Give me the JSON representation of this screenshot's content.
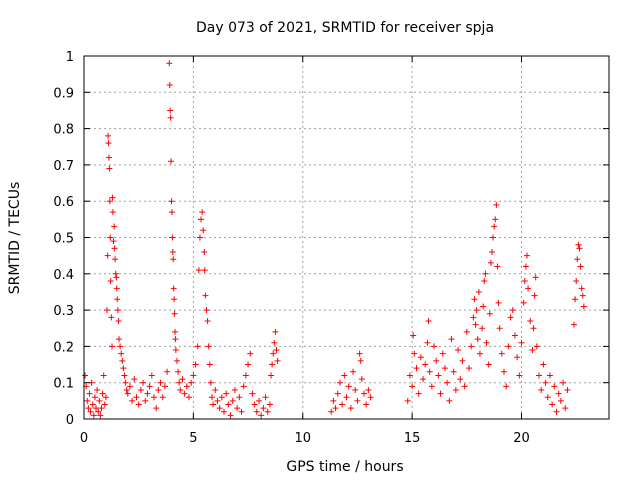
{
  "chart_data": {
    "type": "scatter",
    "title": "Day 073 of 2021, SRMTID for receiver spja",
    "xlabel": "GPS time / hours",
    "ylabel": "SRMTID / TECUs",
    "xlim": [
      0,
      24
    ],
    "ylim": [
      0,
      1
    ],
    "xticks": [
      0,
      5,
      10,
      15,
      20
    ],
    "xtick_labels": [
      "0",
      "5",
      "10",
      "15",
      "20"
    ],
    "yticks": [
      0,
      0.1,
      0.2,
      0.3,
      0.4,
      0.5,
      0.6,
      0.7,
      0.8,
      0.9,
      1
    ],
    "ytick_labels": [
      "0",
      "0.1",
      "0.2",
      "0.3",
      "0.4",
      "0.5",
      "0.6",
      "0.7",
      "0.8",
      "0.9",
      "1"
    ],
    "grid": true,
    "marker": "+",
    "color": "#ff0000",
    "series": [
      {
        "name": "SRMTID",
        "points": [
          [
            0.05,
            0.12
          ],
          [
            0.1,
            0.09
          ],
          [
            0.15,
            0.05
          ],
          [
            0.2,
            0.03
          ],
          [
            0.25,
            0.07
          ],
          [
            0.3,
            0.02
          ],
          [
            0.35,
            0.1
          ],
          [
            0.4,
            0.04
          ],
          [
            0.45,
            0.01
          ],
          [
            0.5,
            0.06
          ],
          [
            0.55,
            0.03
          ],
          [
            0.6,
            0.08
          ],
          [
            0.65,
            0.02
          ],
          [
            0.7,
            0.05
          ],
          [
            0.75,
            0.01
          ],
          [
            0.8,
            0.03
          ],
          [
            0.85,
            0.07
          ],
          [
            0.9,
            0.12
          ],
          [
            0.95,
            0.04
          ],
          [
            1.0,
            0.06
          ],
          [
            1.05,
            0.3
          ],
          [
            1.08,
            0.45
          ],
          [
            1.1,
            0.78
          ],
          [
            1.12,
            0.76
          ],
          [
            1.14,
            0.72
          ],
          [
            1.16,
            0.69
          ],
          [
            1.18,
            0.6
          ],
          [
            1.2,
            0.5
          ],
          [
            1.22,
            0.38
          ],
          [
            1.25,
            0.28
          ],
          [
            1.28,
            0.2
          ],
          [
            1.3,
            0.61
          ],
          [
            1.32,
            0.57
          ],
          [
            1.35,
            0.49
          ],
          [
            1.38,
            0.53
          ],
          [
            1.4,
            0.47
          ],
          [
            1.42,
            0.44
          ],
          [
            1.45,
            0.4
          ],
          [
            1.48,
            0.39
          ],
          [
            1.5,
            0.36
          ],
          [
            1.52,
            0.33
          ],
          [
            1.55,
            0.3
          ],
          [
            1.58,
            0.27
          ],
          [
            1.6,
            0.22
          ],
          [
            1.65,
            0.2
          ],
          [
            1.7,
            0.18
          ],
          [
            1.75,
            0.16
          ],
          [
            1.8,
            0.14
          ],
          [
            1.85,
            0.12
          ],
          [
            1.9,
            0.1
          ],
          [
            1.95,
            0.08
          ],
          [
            2.0,
            0.07
          ],
          [
            2.1,
            0.09
          ],
          [
            2.2,
            0.05
          ],
          [
            2.3,
            0.11
          ],
          [
            2.4,
            0.06
          ],
          [
            2.5,
            0.04
          ],
          [
            2.6,
            0.08
          ],
          [
            2.7,
            0.1
          ],
          [
            2.8,
            0.05
          ],
          [
            2.9,
            0.07
          ],
          [
            3.0,
            0.09
          ],
          [
            3.1,
            0.12
          ],
          [
            3.2,
            0.06
          ],
          [
            3.3,
            0.03
          ],
          [
            3.4,
            0.08
          ],
          [
            3.5,
            0.1
          ],
          [
            3.6,
            0.06
          ],
          [
            3.7,
            0.09
          ],
          [
            3.8,
            0.13
          ],
          [
            3.9,
            0.98
          ],
          [
            3.92,
            0.92
          ],
          [
            3.94,
            0.85
          ],
          [
            3.96,
            0.83
          ],
          [
            3.98,
            0.71
          ],
          [
            4.0,
            0.6
          ],
          [
            4.02,
            0.57
          ],
          [
            4.04,
            0.5
          ],
          [
            4.06,
            0.46
          ],
          [
            4.08,
            0.44
          ],
          [
            4.1,
            0.36
          ],
          [
            4.12,
            0.33
          ],
          [
            4.14,
            0.29
          ],
          [
            4.16,
            0.24
          ],
          [
            4.18,
            0.22
          ],
          [
            4.2,
            0.19
          ],
          [
            4.25,
            0.16
          ],
          [
            4.3,
            0.13
          ],
          [
            4.35,
            0.1
          ],
          [
            4.4,
            0.08
          ],
          [
            4.5,
            0.11
          ],
          [
            4.6,
            0.07
          ],
          [
            4.7,
            0.09
          ],
          [
            4.8,
            0.06
          ],
          [
            4.9,
            0.1
          ],
          [
            5.0,
            0.12
          ],
          [
            5.1,
            0.15
          ],
          [
            5.2,
            0.2
          ],
          [
            5.25,
            0.41
          ],
          [
            5.3,
            0.5
          ],
          [
            5.35,
            0.55
          ],
          [
            5.4,
            0.57
          ],
          [
            5.45,
            0.52
          ],
          [
            5.5,
            0.46
          ],
          [
            5.52,
            0.41
          ],
          [
            5.55,
            0.34
          ],
          [
            5.6,
            0.3
          ],
          [
            5.65,
            0.27
          ],
          [
            5.7,
            0.2
          ],
          [
            5.75,
            0.15
          ],
          [
            5.8,
            0.1
          ],
          [
            5.85,
            0.06
          ],
          [
            5.9,
            0.04
          ],
          [
            6.0,
            0.08
          ],
          [
            6.1,
            0.05
          ],
          [
            6.2,
            0.03
          ],
          [
            6.3,
            0.06
          ],
          [
            6.4,
            0.02
          ],
          [
            6.5,
            0.07
          ],
          [
            6.6,
            0.04
          ],
          [
            6.7,
            0.01
          ],
          [
            6.8,
            0.05
          ],
          [
            6.9,
            0.08
          ],
          [
            7.0,
            0.03
          ],
          [
            7.1,
            0.06
          ],
          [
            7.2,
            0.02
          ],
          [
            7.3,
            0.09
          ],
          [
            7.4,
            0.12
          ],
          [
            7.5,
            0.15
          ],
          [
            7.6,
            0.18
          ],
          [
            7.7,
            0.07
          ],
          [
            7.8,
            0.04
          ],
          [
            7.9,
            0.02
          ],
          [
            8.0,
            0.05
          ],
          [
            8.1,
            0.01
          ],
          [
            8.2,
            0.03
          ],
          [
            8.3,
            0.06
          ],
          [
            8.4,
            0.02
          ],
          [
            8.5,
            0.04
          ],
          [
            8.55,
            0.12
          ],
          [
            8.6,
            0.15
          ],
          [
            8.65,
            0.18
          ],
          [
            8.7,
            0.21
          ],
          [
            8.75,
            0.24
          ],
          [
            8.8,
            0.19
          ],
          [
            8.85,
            0.16
          ],
          [
            11.3,
            0.02
          ],
          [
            11.4,
            0.05
          ],
          [
            11.5,
            0.03
          ],
          [
            11.6,
            0.07
          ],
          [
            11.7,
            0.1
          ],
          [
            11.8,
            0.04
          ],
          [
            11.9,
            0.12
          ],
          [
            12.0,
            0.06
          ],
          [
            12.1,
            0.09
          ],
          [
            12.2,
            0.03
          ],
          [
            12.3,
            0.13
          ],
          [
            12.4,
            0.08
          ],
          [
            12.5,
            0.05
          ],
          [
            12.6,
            0.18
          ],
          [
            12.65,
            0.16
          ],
          [
            12.7,
            0.11
          ],
          [
            12.8,
            0.07
          ],
          [
            12.9,
            0.04
          ],
          [
            13.0,
            0.08
          ],
          [
            13.1,
            0.06
          ],
          [
            14.8,
            0.05
          ],
          [
            14.9,
            0.12
          ],
          [
            15.0,
            0.09
          ],
          [
            15.05,
            0.23
          ],
          [
            15.1,
            0.18
          ],
          [
            15.2,
            0.14
          ],
          [
            15.3,
            0.07
          ],
          [
            15.4,
            0.17
          ],
          [
            15.5,
            0.11
          ],
          [
            15.6,
            0.15
          ],
          [
            15.7,
            0.21
          ],
          [
            15.75,
            0.27
          ],
          [
            15.8,
            0.13
          ],
          [
            15.9,
            0.09
          ],
          [
            16.0,
            0.2
          ],
          [
            16.1,
            0.16
          ],
          [
            16.2,
            0.12
          ],
          [
            16.3,
            0.07
          ],
          [
            16.4,
            0.18
          ],
          [
            16.5,
            0.14
          ],
          [
            16.6,
            0.1
          ],
          [
            16.7,
            0.05
          ],
          [
            16.8,
            0.22
          ],
          [
            16.9,
            0.13
          ],
          [
            17.0,
            0.08
          ],
          [
            17.1,
            0.19
          ],
          [
            17.2,
            0.11
          ],
          [
            17.3,
            0.16
          ],
          [
            17.4,
            0.09
          ],
          [
            17.5,
            0.24
          ],
          [
            17.6,
            0.14
          ],
          [
            17.7,
            0.2
          ],
          [
            17.8,
            0.28
          ],
          [
            17.85,
            0.33
          ],
          [
            17.9,
            0.26
          ],
          [
            17.95,
            0.3
          ],
          [
            18.0,
            0.22
          ],
          [
            18.05,
            0.35
          ],
          [
            18.1,
            0.18
          ],
          [
            18.2,
            0.25
          ],
          [
            18.25,
            0.31
          ],
          [
            18.3,
            0.38
          ],
          [
            18.35,
            0.4
          ],
          [
            18.4,
            0.21
          ],
          [
            18.5,
            0.15
          ],
          [
            18.55,
            0.29
          ],
          [
            18.6,
            0.43
          ],
          [
            18.65,
            0.46
          ],
          [
            18.7,
            0.5
          ],
          [
            18.75,
            0.53
          ],
          [
            18.8,
            0.55
          ],
          [
            18.85,
            0.59
          ],
          [
            18.9,
            0.42
          ],
          [
            18.95,
            0.32
          ],
          [
            19.0,
            0.25
          ],
          [
            19.1,
            0.18
          ],
          [
            19.2,
            0.13
          ],
          [
            19.3,
            0.09
          ],
          [
            19.4,
            0.2
          ],
          [
            19.5,
            0.28
          ],
          [
            19.6,
            0.3
          ],
          [
            19.7,
            0.23
          ],
          [
            19.8,
            0.17
          ],
          [
            19.9,
            0.12
          ],
          [
            20.0,
            0.21
          ],
          [
            20.1,
            0.32
          ],
          [
            20.15,
            0.38
          ],
          [
            20.2,
            0.42
          ],
          [
            20.25,
            0.45
          ],
          [
            20.3,
            0.36
          ],
          [
            20.4,
            0.27
          ],
          [
            20.5,
            0.19
          ],
          [
            20.55,
            0.25
          ],
          [
            20.6,
            0.34
          ],
          [
            20.65,
            0.39
          ],
          [
            20.7,
            0.2
          ],
          [
            20.8,
            0.12
          ],
          [
            20.9,
            0.08
          ],
          [
            21.0,
            0.15
          ],
          [
            21.1,
            0.1
          ],
          [
            21.2,
            0.06
          ],
          [
            21.3,
            0.12
          ],
          [
            21.4,
            0.04
          ],
          [
            21.5,
            0.09
          ],
          [
            21.6,
            0.02
          ],
          [
            21.7,
            0.07
          ],
          [
            21.8,
            0.05
          ],
          [
            21.9,
            0.1
          ],
          [
            22.0,
            0.03
          ],
          [
            22.1,
            0.08
          ],
          [
            22.4,
            0.26
          ],
          [
            22.45,
            0.33
          ],
          [
            22.5,
            0.38
          ],
          [
            22.55,
            0.44
          ],
          [
            22.6,
            0.48
          ],
          [
            22.65,
            0.47
          ],
          [
            22.7,
            0.42
          ],
          [
            22.75,
            0.36
          ],
          [
            22.8,
            0.34
          ],
          [
            22.85,
            0.31
          ]
        ]
      }
    ]
  }
}
